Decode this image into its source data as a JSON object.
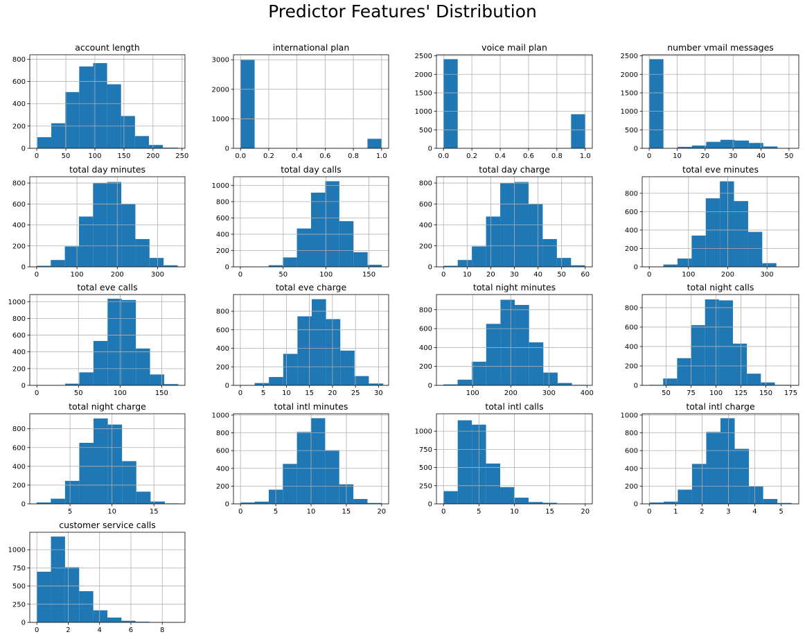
{
  "figure": {
    "title": "Predictor Features' Distribution"
  },
  "style": {
    "bar_color": "#1f77b4",
    "grid_color": "#b0b0b0",
    "axis_color": "#000000"
  },
  "chart_data": [
    {
      "type": "bar",
      "title": "account length",
      "grid": true,
      "xlim": [
        -12,
        255
      ],
      "ylim": [
        0,
        840
      ],
      "xticks": [
        0,
        50,
        100,
        150,
        200,
        250
      ],
      "yticks": [
        0,
        200,
        400,
        600,
        800
      ],
      "bins": [
        [
          1,
          25,
          100
        ],
        [
          25,
          49,
          225
        ],
        [
          49,
          73,
          505
        ],
        [
          73,
          97,
          735
        ],
        [
          97,
          121,
          765
        ],
        [
          121,
          145,
          575
        ],
        [
          145,
          169,
          290
        ],
        [
          169,
          193,
          110
        ],
        [
          193,
          217,
          30
        ],
        [
          217,
          243,
          6
        ]
      ]
    },
    {
      "type": "bar",
      "title": "international plan",
      "grid": true,
      "xlim": [
        -0.05,
        1.05
      ],
      "ylim": [
        0,
        3170
      ],
      "xticks": [
        0.0,
        0.2,
        0.4,
        0.6,
        0.8,
        1.0
      ],
      "yticks": [
        0,
        1000,
        2000,
        3000
      ],
      "bins": [
        [
          0,
          0.1,
          3010
        ],
        [
          0.9,
          1.0,
          323
        ]
      ]
    },
    {
      "type": "bar",
      "title": "voice mail plan",
      "grid": true,
      "xlim": [
        -0.05,
        1.05
      ],
      "ylim": [
        0,
        2530
      ],
      "xticks": [
        0.0,
        0.2,
        0.4,
        0.6,
        0.8,
        1.0
      ],
      "yticks": [
        0,
        500,
        1000,
        1500,
        2000,
        2500
      ],
      "bins": [
        [
          0,
          0.1,
          2411
        ],
        [
          0.9,
          1.0,
          922
        ]
      ]
    },
    {
      "type": "bar",
      "title": "number vmail messages",
      "grid": true,
      "xlim": [
        -2.5,
        53.5
      ],
      "ylim": [
        0,
        2530
      ],
      "xticks": [
        0,
        10,
        20,
        30,
        40,
        50
      ],
      "yticks": [
        0,
        500,
        1000,
        1500,
        2000,
        2500
      ],
      "bins": [
        [
          0,
          5.1,
          2411
        ],
        [
          5.1,
          10.2,
          0
        ],
        [
          10.2,
          15.3,
          40
        ],
        [
          15.3,
          20.4,
          75
        ],
        [
          20.4,
          25.5,
          175
        ],
        [
          25.5,
          30.6,
          230
        ],
        [
          30.6,
          35.7,
          210
        ],
        [
          35.7,
          40.8,
          145
        ],
        [
          40.8,
          45.9,
          50
        ],
        [
          45.9,
          51,
          10
        ]
      ]
    },
    {
      "type": "bar",
      "title": "total day minutes",
      "grid": true,
      "xlim": [
        -17,
        368
      ],
      "ylim": [
        0,
        860
      ],
      "xticks": [
        0,
        100,
        200,
        300
      ],
      "yticks": [
        0,
        200,
        400,
        600,
        800
      ],
      "bins": [
        [
          0,
          35,
          10
        ],
        [
          35,
          70,
          65
        ],
        [
          70,
          105,
          195
        ],
        [
          105,
          140,
          480
        ],
        [
          140,
          175,
          800
        ],
        [
          175,
          210,
          810
        ],
        [
          210,
          245,
          600
        ],
        [
          245,
          280,
          265
        ],
        [
          280,
          315,
          85
        ],
        [
          315,
          350,
          15
        ]
      ]
    },
    {
      "type": "bar",
      "title": "total day calls",
      "grid": true,
      "xlim": [
        -8,
        173
      ],
      "ylim": [
        0,
        1105
      ],
      "xticks": [
        0,
        50,
        100,
        150
      ],
      "yticks": [
        0,
        200,
        400,
        600,
        800,
        1000
      ],
      "bins": [
        [
          0,
          16.5,
          3
        ],
        [
          16.5,
          33,
          0
        ],
        [
          33,
          49.5,
          20
        ],
        [
          49.5,
          66,
          115
        ],
        [
          66,
          82.5,
          470
        ],
        [
          82.5,
          99,
          910
        ],
        [
          99,
          115.5,
          1050
        ],
        [
          115.5,
          132,
          560
        ],
        [
          132,
          148.5,
          180
        ],
        [
          148.5,
          165,
          25
        ]
      ]
    },
    {
      "type": "bar",
      "title": "total day charge",
      "grid": true,
      "xlim": [
        -3,
        63
      ],
      "ylim": [
        0,
        860
      ],
      "xticks": [
        0,
        10,
        20,
        30,
        40,
        50,
        60
      ],
      "yticks": [
        0,
        200,
        400,
        600,
        800
      ],
      "bins": [
        [
          0,
          6,
          10
        ],
        [
          6,
          12,
          65
        ],
        [
          12,
          18,
          195
        ],
        [
          18,
          24,
          480
        ],
        [
          24,
          30,
          800
        ],
        [
          30,
          36,
          810
        ],
        [
          36,
          42,
          600
        ],
        [
          42,
          48,
          265
        ],
        [
          48,
          54,
          85
        ],
        [
          54,
          60,
          15
        ]
      ]
    },
    {
      "type": "bar",
      "title": "total eve minutes",
      "grid": true,
      "xlim": [
        -18,
        381
      ],
      "ylim": [
        0,
        980
      ],
      "xticks": [
        0,
        100,
        200,
        300
      ],
      "yticks": [
        0,
        200,
        400,
        600,
        800
      ],
      "bins": [
        [
          0,
          36,
          3
        ],
        [
          36,
          72,
          25
        ],
        [
          72,
          108,
          90
        ],
        [
          108,
          144,
          340
        ],
        [
          144,
          180,
          745
        ],
        [
          180,
          216,
          930
        ],
        [
          216,
          252,
          715
        ],
        [
          252,
          288,
          380
        ],
        [
          288,
          324,
          40
        ],
        [
          324,
          360,
          0
        ]
      ]
    },
    {
      "type": "bar",
      "title": "total eve calls",
      "grid": true,
      "xlim": [
        -8.5,
        178
      ],
      "ylim": [
        0,
        1085
      ],
      "xticks": [
        0,
        50,
        100,
        150
      ],
      "yticks": [
        0,
        200,
        400,
        600,
        800,
        1000
      ],
      "bins": [
        [
          0,
          17,
          1
        ],
        [
          17,
          34,
          0
        ],
        [
          34,
          51,
          20
        ],
        [
          51,
          68,
          155
        ],
        [
          68,
          85,
          530
        ],
        [
          85,
          102,
          1035
        ],
        [
          102,
          119,
          1020
        ],
        [
          119,
          136,
          440
        ],
        [
          136,
          153,
          130
        ],
        [
          153,
          170,
          15
        ]
      ]
    },
    {
      "type": "bar",
      "title": "total eve charge",
      "grid": true,
      "xlim": [
        -1.5,
        32.2
      ],
      "ylim": [
        0,
        980
      ],
      "xticks": [
        0,
        5,
        10,
        15,
        20,
        25,
        30
      ],
      "yticks": [
        0,
        200,
        400,
        600,
        800
      ],
      "bins": [
        [
          0,
          3.1,
          3
        ],
        [
          3.1,
          6.2,
          25
        ],
        [
          6.2,
          9.3,
          90
        ],
        [
          9.3,
          12.4,
          340
        ],
        [
          12.4,
          15.5,
          745
        ],
        [
          15.5,
          18.6,
          930
        ],
        [
          18.6,
          21.7,
          715
        ],
        [
          21.7,
          24.8,
          375
        ],
        [
          24.8,
          27.9,
          100
        ],
        [
          27.9,
          31,
          20
        ]
      ]
    },
    {
      "type": "bar",
      "title": "total night minutes",
      "grid": true,
      "xlim": [
        5,
        414
      ],
      "ylim": [
        0,
        960
      ],
      "xticks": [
        100,
        200,
        300,
        400
      ],
      "yticks": [
        0,
        200,
        400,
        600,
        800
      ],
      "bins": [
        [
          23,
          60.5,
          10
        ],
        [
          60.5,
          98,
          60
        ],
        [
          98,
          135.5,
          250
        ],
        [
          135.5,
          173,
          650
        ],
        [
          173,
          210.5,
          905
        ],
        [
          210.5,
          248,
          850
        ],
        [
          248,
          285.5,
          455
        ],
        [
          285.5,
          323,
          135
        ],
        [
          323,
          360.5,
          25
        ],
        [
          360.5,
          398,
          5
        ]
      ]
    },
    {
      "type": "bar",
      "title": "total night calls",
      "grid": true,
      "xlim": [
        26,
        183
      ],
      "ylim": [
        0,
        935
      ],
      "xticks": [
        50,
        75,
        100,
        125,
        150,
        175
      ],
      "yticks": [
        0,
        200,
        400,
        600,
        800
      ],
      "bins": [
        [
          33,
          47,
          5
        ],
        [
          47,
          61,
          70
        ],
        [
          61,
          75,
          280
        ],
        [
          75,
          89,
          620
        ],
        [
          89,
          103,
          885
        ],
        [
          103,
          117,
          875
        ],
        [
          117,
          131,
          430
        ],
        [
          131,
          145,
          120
        ],
        [
          145,
          159,
          30
        ],
        [
          159,
          175,
          5
        ]
      ]
    },
    {
      "type": "bar",
      "title": "total night charge",
      "grid": true,
      "xlim": [
        0.2,
        18.7
      ],
      "ylim": [
        0,
        960
      ],
      "xticks": [
        5,
        10,
        15
      ],
      "yticks": [
        0,
        200,
        400,
        600,
        800
      ],
      "bins": [
        [
          1,
          2.7,
          15
        ],
        [
          2.7,
          4.4,
          55
        ],
        [
          4.4,
          6.1,
          245
        ],
        [
          6.1,
          7.8,
          650
        ],
        [
          7.8,
          9.5,
          910
        ],
        [
          9.5,
          11.2,
          845
        ],
        [
          11.2,
          12.9,
          455
        ],
        [
          12.9,
          14.6,
          130
        ],
        [
          14.6,
          16.3,
          25
        ],
        [
          16.3,
          18,
          5
        ]
      ]
    },
    {
      "type": "bar",
      "title": "total intl minutes",
      "grid": true,
      "xlim": [
        -1,
        21
      ],
      "ylim": [
        0,
        1015
      ],
      "xticks": [
        0,
        5,
        10,
        15,
        20
      ],
      "yticks": [
        0,
        200,
        400,
        600,
        800,
        1000
      ],
      "bins": [
        [
          0,
          2,
          15
        ],
        [
          2,
          4,
          25
        ],
        [
          4,
          6,
          160
        ],
        [
          6,
          8,
          450
        ],
        [
          8,
          10,
          810
        ],
        [
          10,
          12,
          965
        ],
        [
          12,
          14,
          605
        ],
        [
          14,
          16,
          220
        ],
        [
          16,
          18,
          55
        ],
        [
          18,
          20,
          10
        ]
      ]
    },
    {
      "type": "bar",
      "title": "total intl calls",
      "grid": true,
      "xlim": [
        -1,
        21
      ],
      "ylim": [
        0,
        1240
      ],
      "xticks": [
        0,
        5,
        10,
        15,
        20
      ],
      "yticks": [
        0,
        250,
        500,
        750,
        1000
      ],
      "bins": [
        [
          0,
          2,
          175
        ],
        [
          2,
          4,
          1150
        ],
        [
          4,
          6,
          1090
        ],
        [
          6,
          8,
          555
        ],
        [
          8,
          10,
          230
        ],
        [
          10,
          12,
          85
        ],
        [
          12,
          14,
          25
        ],
        [
          14,
          16,
          15
        ],
        [
          16,
          18,
          5
        ],
        [
          18,
          20,
          2
        ]
      ]
    },
    {
      "type": "bar",
      "title": "total intl charge",
      "grid": true,
      "xlim": [
        -0.27,
        5.67
      ],
      "ylim": [
        0,
        1015
      ],
      "xticks": [
        0,
        1,
        2,
        3,
        4,
        5
      ],
      "yticks": [
        0,
        200,
        400,
        600,
        800,
        1000
      ],
      "bins": [
        [
          0,
          0.54,
          15
        ],
        [
          0.54,
          1.08,
          25
        ],
        [
          1.08,
          1.62,
          160
        ],
        [
          1.62,
          2.16,
          450
        ],
        [
          2.16,
          2.7,
          810
        ],
        [
          2.7,
          3.24,
          965
        ],
        [
          3.24,
          3.78,
          620
        ],
        [
          3.78,
          4.32,
          195
        ],
        [
          4.32,
          4.86,
          55
        ],
        [
          4.86,
          5.4,
          10
        ]
      ]
    },
    {
      "type": "bar",
      "title": "customer service calls",
      "grid": true,
      "xlim": [
        -0.45,
        9.45
      ],
      "ylim": [
        0,
        1240
      ],
      "xticks": [
        0,
        2,
        4,
        6,
        8
      ],
      "yticks": [
        0,
        250,
        500,
        750,
        1000
      ],
      "bins": [
        [
          0,
          0.9,
          697
        ],
        [
          0.9,
          1.8,
          1181
        ],
        [
          1.8,
          2.7,
          759
        ],
        [
          2.7,
          3.6,
          429
        ],
        [
          3.6,
          4.5,
          166
        ],
        [
          4.5,
          5.4,
          66
        ],
        [
          5.4,
          6.3,
          22
        ],
        [
          6.3,
          7.2,
          9
        ],
        [
          7.2,
          8.1,
          2
        ],
        [
          8.1,
          9,
          2
        ]
      ]
    }
  ]
}
